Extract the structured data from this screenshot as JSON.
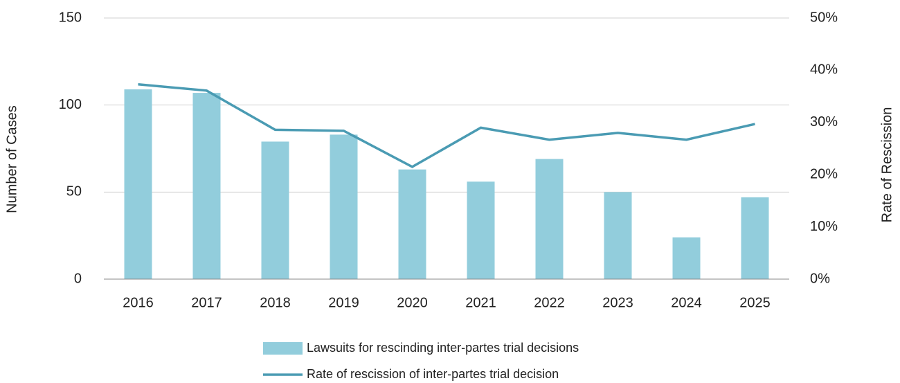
{
  "chart_data": {
    "type": "bar",
    "categories": [
      "2016",
      "2017",
      "2018",
      "2019",
      "2020",
      "2021",
      "2022",
      "2023",
      "2024",
      "2025"
    ],
    "series": [
      {
        "name": "Lawsuits for rescinding inter-partes trial decisions",
        "type": "bar",
        "color": "#92cddc",
        "values": [
          109,
          107,
          79,
          83,
          63,
          56,
          69,
          50,
          24,
          47
        ]
      },
      {
        "name": "Rate of rescission of inter-partes trial decision",
        "type": "line",
        "axis": "y2",
        "color": "#4a9bb3",
        "values": [
          37.3,
          36.1,
          28.6,
          28.4,
          21.5,
          29.0,
          26.7,
          28.0,
          26.7,
          29.7
        ]
      }
    ],
    "ylabel": "Number of Cases",
    "y2label": "Rate of Rescission",
    "ylim": [
      0,
      150
    ],
    "yticks": [
      0,
      50,
      100,
      150
    ],
    "y2lim": [
      0,
      50
    ],
    "y2ticks": [
      {
        "value": 0,
        "label": "0%"
      },
      {
        "value": 10,
        "label": "10%"
      },
      {
        "value": 20,
        "label": "20%"
      },
      {
        "value": 30,
        "label": "30%"
      },
      {
        "value": 40,
        "label": "40%"
      },
      {
        "value": 50,
        "label": "50%"
      }
    ],
    "grid": true,
    "legend": "bottom"
  }
}
